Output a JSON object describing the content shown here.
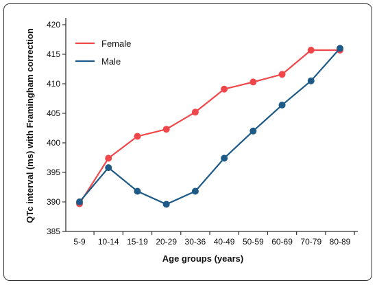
{
  "chart_data": {
    "type": "line",
    "xlabel": "Age groups (years)",
    "ylabel": "QTc interval (ms) with Framingham correction",
    "categories": [
      "5-9",
      "10-14",
      "15-19",
      "20-29",
      "30-36",
      "40-49",
      "50-59",
      "60-69",
      "70-79",
      "80-89"
    ],
    "ylim": [
      385,
      420
    ],
    "yticks": [
      385,
      390,
      395,
      400,
      405,
      410,
      415,
      420
    ],
    "grid": false,
    "legend_position": "top-left",
    "series": [
      {
        "name": "Female",
        "color": "#f0474b",
        "values": [
          389.7,
          397.4,
          401.1,
          402.3,
          405.2,
          409.1,
          410.3,
          411.6,
          415.7,
          415.7
        ]
      },
      {
        "name": "Male",
        "color": "#1d5a87",
        "values": [
          390.0,
          395.8,
          391.8,
          389.6,
          391.8,
          397.4,
          402.0,
          406.4,
          410.5,
          416.0
        ]
      }
    ]
  }
}
